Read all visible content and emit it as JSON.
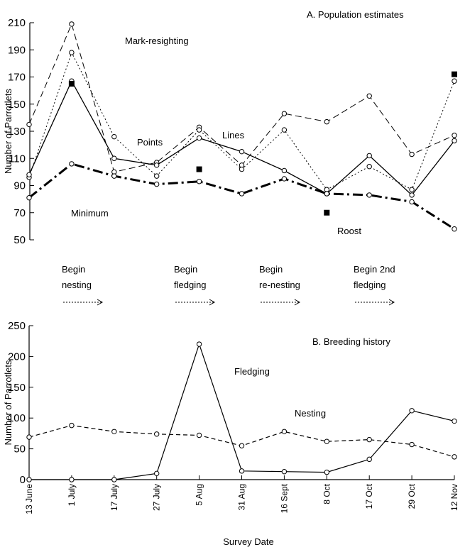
{
  "chart_data": [
    {
      "type": "line",
      "title": "A. Population estimates",
      "ylabel": "Number of Parrotlets",
      "xlabel": "",
      "ylim": [
        50,
        210
      ],
      "yticks": [
        50,
        70,
        90,
        110,
        130,
        150,
        170,
        190,
        210
      ],
      "categories": [
        "13 June",
        "1 July",
        "17 July",
        "27 July",
        "5 Aug",
        "31 Aug",
        "16 Sept",
        "8 Oct",
        "17 Oct",
        "29 Oct",
        "12 Nov"
      ],
      "grid": false,
      "series": [
        {
          "name": "Mark-resighting",
          "style": "long-dash",
          "marker": "circle",
          "values": [
            135,
            209,
            100,
            107,
            133,
            105,
            143,
            137,
            156,
            113,
            127
          ]
        },
        {
          "name": "Points",
          "style": "dotted",
          "marker": "circle",
          "values": [
            96,
            188,
            126,
            97,
            131,
            102,
            131,
            87,
            104,
            87,
            167
          ]
        },
        {
          "name": "Lines",
          "style": "solid",
          "marker": "circle",
          "values": [
            98,
            167,
            110,
            105,
            125,
            115,
            101,
            84,
            112,
            83,
            123
          ]
        },
        {
          "name": "Minimum",
          "style": "thick-dash-dot",
          "marker": "circle",
          "values": [
            81,
            106,
            97,
            91,
            93,
            84,
            95,
            84,
            83,
            78,
            58
          ]
        },
        {
          "name": "Roost",
          "style": "markers-only",
          "marker": "square",
          "values": [
            null,
            165,
            null,
            null,
            102,
            null,
            null,
            70,
            null,
            null,
            172
          ]
        }
      ],
      "phases": [
        {
          "line1": "Begin",
          "line2": "nesting"
        },
        {
          "line1": "Begin",
          "line2": "fledging"
        },
        {
          "line1": "Begin",
          "line2": "re-nesting"
        },
        {
          "line1": "Begin 2nd",
          "line2": "fledging"
        }
      ]
    },
    {
      "type": "line",
      "title": "B. Breeding history",
      "ylabel": "Number of Parrotlets",
      "xlabel": "Survey Date",
      "ylim": [
        0,
        250
      ],
      "yticks": [
        0,
        50,
        100,
        150,
        200,
        250
      ],
      "categories": [
        "13 June",
        "1 July",
        "17 July",
        "27 July",
        "5 Aug",
        "31 Aug",
        "16 Sept",
        "8 Oct",
        "17 Oct",
        "29 Oct",
        "12 Nov"
      ],
      "grid": false,
      "series": [
        {
          "name": "Fledging",
          "style": "solid",
          "marker": "circle",
          "values": [
            0,
            0,
            0,
            10,
            220,
            14,
            13,
            12,
            33,
            112,
            95
          ]
        },
        {
          "name": "Nesting",
          "style": "dashed",
          "marker": "circle",
          "values": [
            69,
            88,
            78,
            74,
            72,
            55,
            78,
            62,
            65,
            57,
            37
          ]
        }
      ]
    }
  ]
}
